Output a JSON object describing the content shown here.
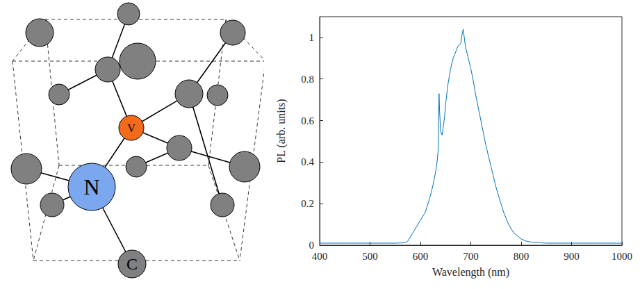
{
  "diagram": {
    "atoms": [
      "V",
      "N",
      "C"
    ]
  },
  "chart_data": {
    "type": "line",
    "x_label": "Wavelength (nm)",
    "y_label": "PL (arb. units)",
    "x": [
      400,
      450,
      500,
      550,
      570,
      575,
      580,
      585,
      590,
      595,
      600,
      605,
      610,
      615,
      620,
      625,
      630,
      633,
      635,
      636,
      637,
      638,
      640,
      643,
      645,
      648,
      650,
      655,
      660,
      665,
      670,
      675,
      680,
      683,
      685,
      688,
      690,
      695,
      700,
      705,
      710,
      715,
      720,
      725,
      730,
      735,
      740,
      745,
      750,
      755,
      760,
      765,
      770,
      775,
      780,
      785,
      790,
      795,
      800,
      810,
      820,
      835,
      850,
      875,
      900,
      950,
      1000
    ],
    "series": [
      {
        "name": "PL",
        "color": "#0072bd",
        "values": [
          0.01,
          0.01,
          0.01,
          0.01,
          0.012,
          0.02,
          0.04,
          0.06,
          0.08,
          0.1,
          0.12,
          0.14,
          0.16,
          0.2,
          0.24,
          0.29,
          0.35,
          0.4,
          0.45,
          0.6,
          0.73,
          0.65,
          0.55,
          0.53,
          0.56,
          0.62,
          0.68,
          0.78,
          0.85,
          0.9,
          0.93,
          0.96,
          0.97,
          1.02,
          1.04,
          0.98,
          0.95,
          0.9,
          0.85,
          0.79,
          0.72,
          0.66,
          0.6,
          0.54,
          0.48,
          0.43,
          0.38,
          0.33,
          0.28,
          0.24,
          0.2,
          0.16,
          0.13,
          0.1,
          0.08,
          0.06,
          0.05,
          0.04,
          0.03,
          0.02,
          0.015,
          0.012,
          0.01,
          0.01,
          0.01,
          0.01,
          0.01
        ]
      }
    ],
    "xlim": [
      400,
      1000
    ],
    "xticks": [
      400,
      500,
      600,
      700,
      800,
      900,
      1000
    ],
    "ylim": [
      0,
      1.1
    ],
    "yticks": [
      0,
      0.2,
      0.4,
      0.6,
      0.8,
      1
    ],
    "grid": false
  }
}
